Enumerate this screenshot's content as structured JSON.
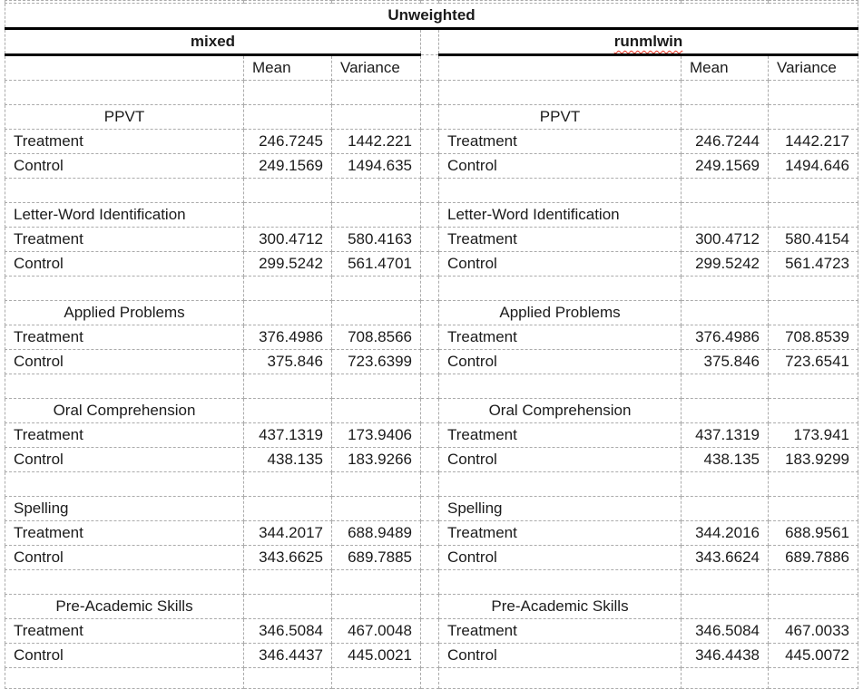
{
  "title": "Unweighted",
  "column_headers": {
    "mean": "Mean",
    "variance": "Variance"
  },
  "panels": [
    {
      "name": "mixed",
      "sections": [
        {
          "label": "PPVT",
          "align": "center",
          "rows": [
            {
              "label": "Treatment",
              "mean": "246.7245",
              "variance": "1442.221"
            },
            {
              "label": "Control",
              "mean": "249.1569",
              "variance": "1494.635"
            }
          ]
        },
        {
          "label": "Letter-Word Identification",
          "align": "left",
          "rows": [
            {
              "label": "Treatment",
              "mean": "300.4712",
              "variance": "580.4163"
            },
            {
              "label": "Control",
              "mean": "299.5242",
              "variance": "561.4701"
            }
          ]
        },
        {
          "label": "Applied Problems",
          "align": "center",
          "rows": [
            {
              "label": "Treatment",
              "mean": "376.4986",
              "variance": "708.8566"
            },
            {
              "label": "Control",
              "mean": "375.846",
              "variance": "723.6399"
            }
          ]
        },
        {
          "label": "Oral Comprehension",
          "align": "center",
          "rows": [
            {
              "label": "Treatment",
              "mean": "437.1319",
              "variance": "173.9406"
            },
            {
              "label": "Control",
              "mean": "438.135",
              "variance": "183.9266"
            }
          ]
        },
        {
          "label": "Spelling",
          "align": "left",
          "rows": [
            {
              "label": "Treatment",
              "mean": "344.2017",
              "variance": "688.9489"
            },
            {
              "label": "Control",
              "mean": "343.6625",
              "variance": "689.7885"
            }
          ]
        },
        {
          "label": "Pre-Academic Skills",
          "align": "center",
          "rows": [
            {
              "label": "Treatment",
              "mean": "346.5084",
              "variance": "467.0048"
            },
            {
              "label": "Control",
              "mean": "346.4437",
              "variance": "445.0021"
            }
          ]
        }
      ]
    },
    {
      "name": "runmlwin",
      "sections": [
        {
          "label": "PPVT",
          "align": "center",
          "rows": [
            {
              "label": "Treatment",
              "mean": "246.7244",
              "variance": "1442.217"
            },
            {
              "label": "Control",
              "mean": "249.1569",
              "variance": "1494.646"
            }
          ]
        },
        {
          "label": "Letter-Word Identification",
          "align": "left",
          "rows": [
            {
              "label": "Treatment",
              "mean": "300.4712",
              "variance": "580.4154"
            },
            {
              "label": "Control",
              "mean": "299.5242",
              "variance": "561.4723"
            }
          ]
        },
        {
          "label": "Applied Problems",
          "align": "center",
          "rows": [
            {
              "label": "Treatment",
              "mean": "376.4986",
              "variance": "708.8539"
            },
            {
              "label": "Control",
              "mean": "375.846",
              "variance": "723.6541"
            }
          ]
        },
        {
          "label": "Oral Comprehension",
          "align": "center",
          "rows": [
            {
              "label": "Treatment",
              "mean": "437.1319",
              "variance": "173.941"
            },
            {
              "label": "Control",
              "mean": "438.135",
              "variance": "183.9299"
            }
          ]
        },
        {
          "label": "Spelling",
          "align": "left",
          "rows": [
            {
              "label": "Treatment",
              "mean": "344.2016",
              "variance": "688.9561"
            },
            {
              "label": "Control",
              "mean": "343.6624",
              "variance": "689.7886"
            }
          ]
        },
        {
          "label": "Pre-Academic Skills",
          "align": "center",
          "rows": [
            {
              "label": "Treatment",
              "mean": "346.5084",
              "variance": "467.0033"
            },
            {
              "label": "Control",
              "mean": "346.4438",
              "variance": "445.0072"
            }
          ]
        }
      ]
    }
  ],
  "colors": {
    "background": "#ffffff",
    "text": "#1b1b1b",
    "gridline": "#ababab",
    "thick_border": "#000000",
    "spellcheck_underline": "#e8321f"
  }
}
